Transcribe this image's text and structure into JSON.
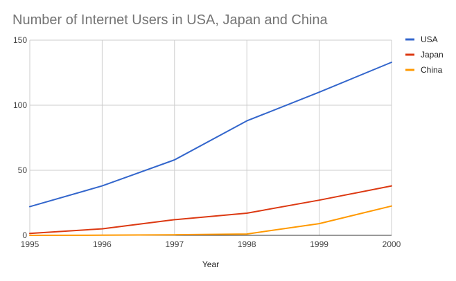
{
  "chart_data": {
    "type": "line",
    "title": "Number of Internet Users in USA, Japan and China",
    "xlabel": "Year",
    "ylabel": "",
    "x": [
      "1995",
      "1996",
      "1997",
      "1998",
      "1999",
      "2000"
    ],
    "y_ticks": [
      0,
      50,
      100,
      150
    ],
    "ylim": [
      0,
      150
    ],
    "grid": true,
    "legend_position": "right",
    "series": [
      {
        "name": "USA",
        "color": "#3366cc",
        "values": [
          22,
          38,
          58,
          88,
          110,
          133
        ]
      },
      {
        "name": "Japan",
        "color": "#dc3912",
        "values": [
          1.5,
          5,
          12,
          17,
          27,
          38
        ]
      },
      {
        "name": "China",
        "color": "#ff9900",
        "values": [
          0,
          0.1,
          0.4,
          1,
          9,
          22.5
        ]
      }
    ]
  }
}
